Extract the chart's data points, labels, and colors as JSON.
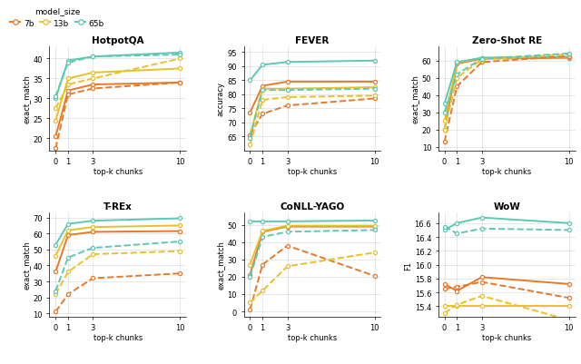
{
  "x": [
    0,
    1,
    3,
    10
  ],
  "model_colors": {
    "7b": "#E8792A",
    "13b": "#E8C12A",
    "65b": "#5DC8B4"
  },
  "legend_title": "model_size",
  "legend_labels": [
    "7b",
    "13b",
    "65b"
  ],
  "subplots": [
    {
      "title": "HotpotQA",
      "ylabel": "exact_match",
      "xlabel": "top-k chunks",
      "ylim": [
        17,
        43
      ],
      "yticks": [
        20,
        25,
        30,
        35,
        40
      ],
      "series": [
        {
          "model": "7b",
          "style": "solid",
          "values": [
            20.5,
            32.0,
            33.5,
            34.0
          ]
        },
        {
          "model": "13b",
          "style": "solid",
          "values": [
            24.5,
            35.0,
            36.5,
            37.5
          ]
        },
        {
          "model": "65b",
          "style": "solid",
          "values": [
            30.0,
            39.5,
            40.5,
            41.5
          ]
        },
        {
          "model": "7b",
          "style": "dashed",
          "values": [
            17.5,
            31.0,
            32.5,
            34.0
          ]
        },
        {
          "model": "13b",
          "style": "dashed",
          "values": [
            27.5,
            33.5,
            35.0,
            40.0
          ]
        },
        {
          "model": "65b",
          "style": "dashed",
          "values": [
            30.5,
            39.0,
            40.5,
            41.0
          ]
        }
      ]
    },
    {
      "title": "FEVER",
      "ylabel": "accuracy",
      "xlabel": "top-k chunks",
      "ylim": [
        60,
        97
      ],
      "yticks": [
        65,
        70,
        75,
        80,
        85,
        90,
        95
      ],
      "series": [
        {
          "model": "7b",
          "style": "solid",
          "values": [
            73.5,
            83.0,
            84.5,
            84.5
          ]
        },
        {
          "model": "13b",
          "style": "solid",
          "values": [
            65.5,
            82.0,
            82.0,
            82.5
          ]
        },
        {
          "model": "65b",
          "style": "solid",
          "values": [
            85.0,
            90.5,
            91.5,
            92.0
          ]
        },
        {
          "model": "7b",
          "style": "dashed",
          "values": [
            65.5,
            73.0,
            76.0,
            78.5
          ]
        },
        {
          "model": "13b",
          "style": "dashed",
          "values": [
            62.0,
            78.0,
            79.0,
            79.5
          ]
        },
        {
          "model": "65b",
          "style": "dashed",
          "values": [
            64.5,
            81.5,
            81.5,
            82.0
          ]
        }
      ]
    },
    {
      "title": "Zero-Shot RE",
      "ylabel": "exact_match",
      "xlabel": "top-k chunks",
      "ylim": [
        8,
        68
      ],
      "yticks": [
        10,
        20,
        30,
        40,
        50,
        60
      ],
      "series": [
        {
          "model": "7b",
          "style": "solid",
          "values": [
            20.0,
            58.0,
            61.0,
            61.5
          ]
        },
        {
          "model": "13b",
          "style": "solid",
          "values": [
            25.0,
            58.5,
            61.5,
            62.0
          ]
        },
        {
          "model": "65b",
          "style": "solid",
          "values": [
            35.0,
            59.0,
            61.5,
            62.0
          ]
        },
        {
          "model": "7b",
          "style": "dashed",
          "values": [
            13.0,
            45.0,
            59.0,
            62.5
          ]
        },
        {
          "model": "13b",
          "style": "dashed",
          "values": [
            20.0,
            50.0,
            60.5,
            63.5
          ]
        },
        {
          "model": "65b",
          "style": "dashed",
          "values": [
            30.0,
            52.0,
            61.0,
            64.0
          ]
        }
      ]
    },
    {
      "title": "T-REx",
      "ylabel": "exact_match",
      "xlabel": "top-k chunks",
      "ylim": [
        8,
        73
      ],
      "yticks": [
        10,
        20,
        30,
        40,
        50,
        60,
        70
      ],
      "series": [
        {
          "model": "7b",
          "style": "solid",
          "values": [
            36.0,
            59.0,
            61.0,
            61.5
          ]
        },
        {
          "model": "13b",
          "style": "solid",
          "values": [
            46.0,
            62.0,
            64.0,
            65.0
          ]
        },
        {
          "model": "65b",
          "style": "solid",
          "values": [
            53.0,
            66.0,
            68.0,
            69.5
          ]
        },
        {
          "model": "7b",
          "style": "dashed",
          "values": [
            11.0,
            22.0,
            32.0,
            35.0
          ]
        },
        {
          "model": "13b",
          "style": "dashed",
          "values": [
            22.0,
            36.0,
            47.0,
            49.0
          ]
        },
        {
          "model": "65b",
          "style": "dashed",
          "values": [
            24.0,
            45.0,
            51.0,
            55.0
          ]
        }
      ]
    },
    {
      "title": "CoNLL-YAGO",
      "ylabel": "exact_match",
      "xlabel": "top-k chunks",
      "ylim": [
        -3,
        57
      ],
      "yticks": [
        0,
        10,
        20,
        30,
        40,
        50
      ],
      "series": [
        {
          "model": "7b",
          "style": "solid",
          "values": [
            21.0,
            46.0,
            49.0,
            49.0
          ]
        },
        {
          "model": "13b",
          "style": "solid",
          "values": [
            27.0,
            46.5,
            49.5,
            49.5
          ]
        },
        {
          "model": "65b",
          "style": "solid",
          "values": [
            52.0,
            52.0,
            52.0,
            52.5
          ]
        },
        {
          "model": "7b",
          "style": "dashed",
          "values": [
            1.0,
            27.0,
            38.0,
            20.5
          ]
        },
        {
          "model": "13b",
          "style": "dashed",
          "values": [
            5.0,
            12.0,
            26.0,
            34.0
          ]
        },
        {
          "model": "65b",
          "style": "dashed",
          "values": [
            20.0,
            43.0,
            46.0,
            47.0
          ]
        }
      ]
    },
    {
      "title": "WoW",
      "ylabel": "F1",
      "xlabel": "top-k chunks",
      "ylim": [
        15.25,
        16.75
      ],
      "yticks": [
        15.4,
        15.6,
        15.8,
        16.0,
        16.2,
        16.4,
        16.6
      ],
      "series": [
        {
          "model": "7b",
          "style": "solid",
          "values": [
            15.72,
            15.62,
            15.82,
            15.72
          ]
        },
        {
          "model": "13b",
          "style": "solid",
          "values": [
            15.4,
            15.4,
            15.4,
            15.4
          ]
        },
        {
          "model": "65b",
          "style": "solid",
          "values": [
            16.5,
            16.6,
            16.68,
            16.6
          ]
        },
        {
          "model": "7b",
          "style": "dashed",
          "values": [
            15.65,
            15.68,
            15.75,
            15.52
          ]
        },
        {
          "model": "13b",
          "style": "dashed",
          "values": [
            15.3,
            15.42,
            15.55,
            15.2
          ]
        },
        {
          "model": "65b",
          "style": "dashed",
          "values": [
            16.55,
            16.45,
            16.52,
            16.5
          ]
        }
      ]
    }
  ]
}
